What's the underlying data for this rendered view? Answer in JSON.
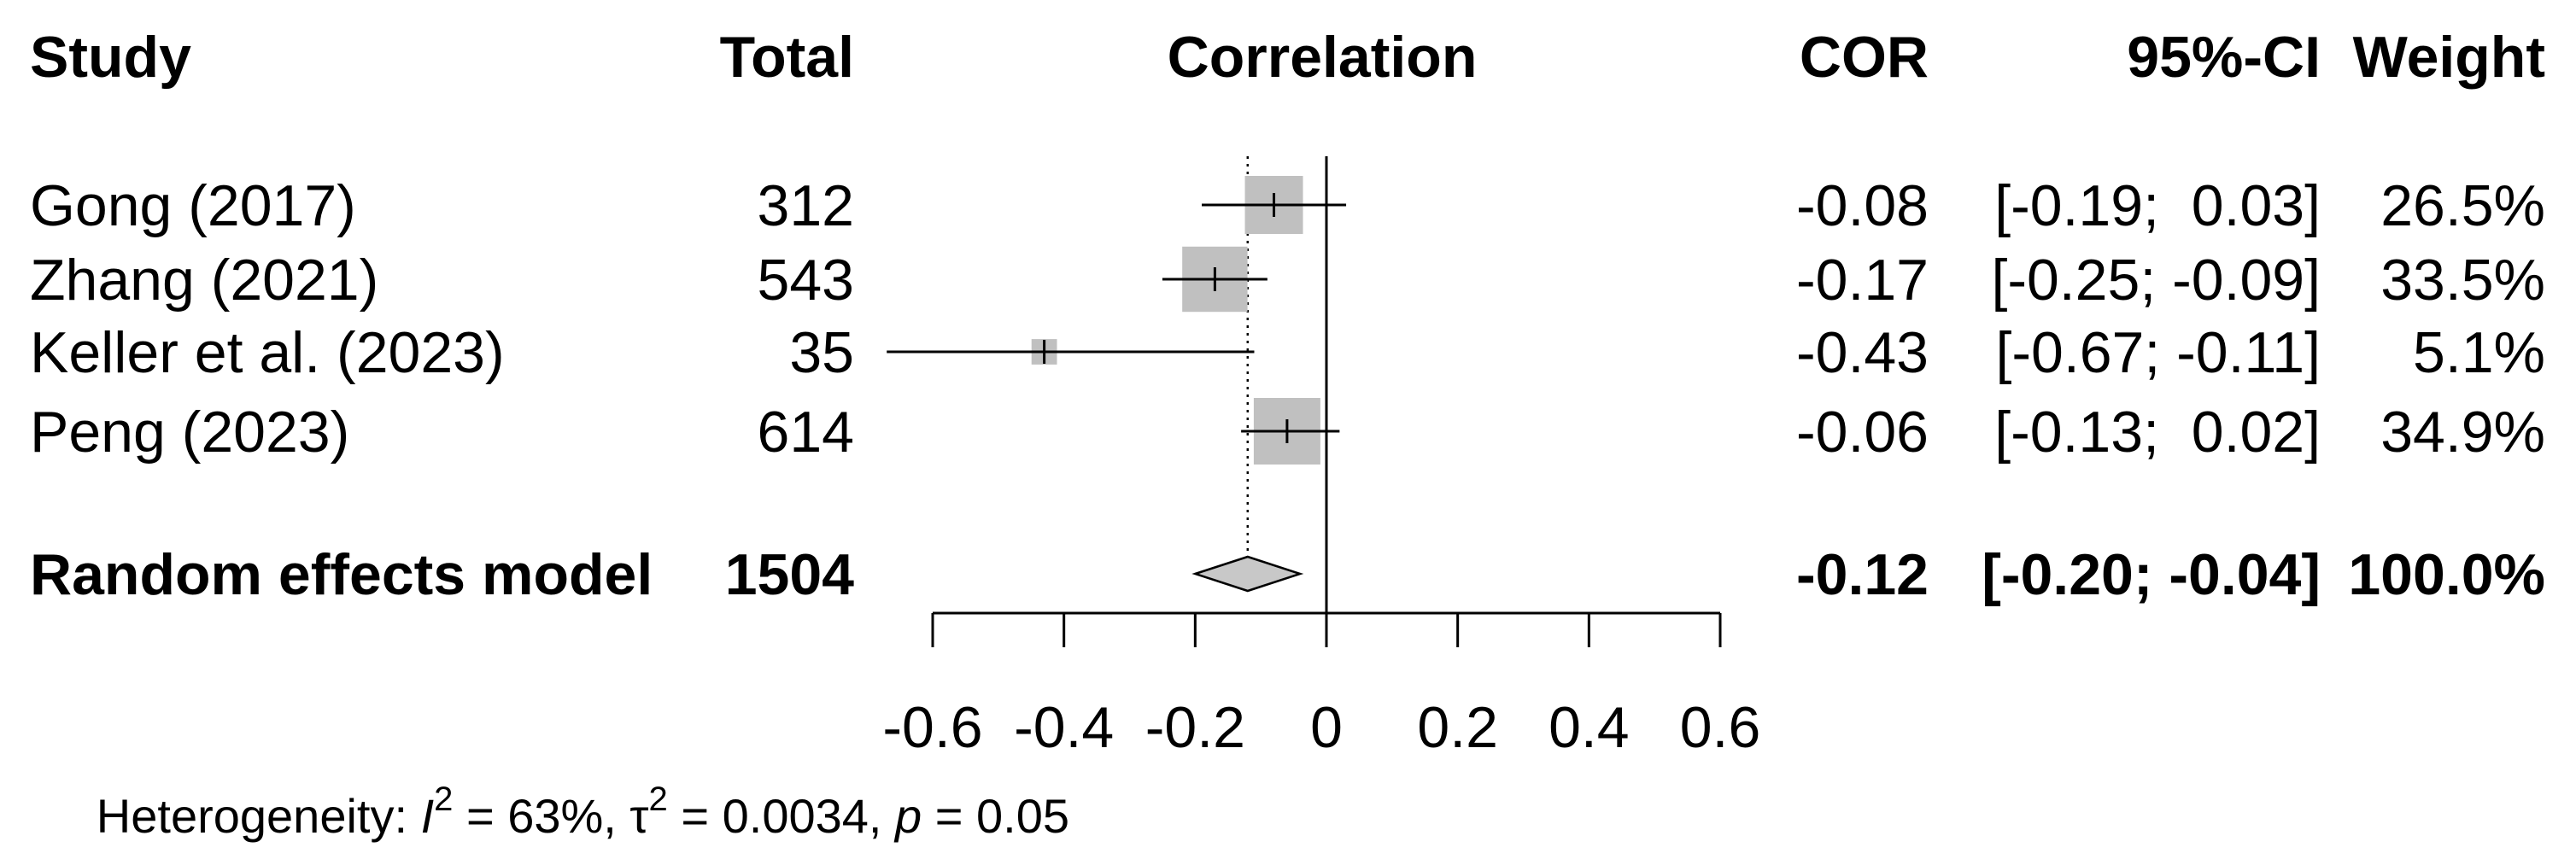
{
  "chart_data": {
    "type": "forest",
    "headers": {
      "study": "Study",
      "total": "Total",
      "plot": "Correlation",
      "effect": "COR",
      "ci": "95%-CI",
      "weight": "Weight"
    },
    "studies": [
      {
        "study": "Gong (2017)",
        "total": "312",
        "cor": -0.08,
        "lower": -0.19,
        "upper": 0.03,
        "weight": 26.5,
        "cor_text": "-0.08",
        "ci_text": "[-0.19;  0.03]",
        "weight_text": "26.5%"
      },
      {
        "study": "Zhang (2021)",
        "total": "543",
        "cor": -0.17,
        "lower": -0.25,
        "upper": -0.09,
        "weight": 33.5,
        "cor_text": "-0.17",
        "ci_text": "[-0.25; -0.09]",
        "weight_text": "33.5%"
      },
      {
        "study": "Keller et al. (2023)",
        "total": "35",
        "cor": -0.43,
        "lower": -0.67,
        "upper": -0.11,
        "weight": 5.1,
        "cor_text": "-0.43",
        "ci_text": "[-0.67; -0.11]",
        "weight_text": "5.1%"
      },
      {
        "study": "Peng (2023)",
        "total": "614",
        "cor": -0.06,
        "lower": -0.13,
        "upper": 0.02,
        "weight": 34.9,
        "cor_text": "-0.06",
        "ci_text": "[-0.13;  0.02]",
        "weight_text": "34.9%"
      }
    ],
    "pooled": {
      "study": "Random effects model",
      "total": "1504",
      "cor": -0.12,
      "lower": -0.2,
      "upper": -0.04,
      "cor_text": "-0.12",
      "ci_text": "[-0.20; -0.04]",
      "weight_text": "100.0%"
    },
    "xlim": [
      -0.6,
      0.6
    ],
    "ticks": [
      -0.6,
      -0.4,
      -0.2,
      0,
      0.2,
      0.4,
      0.6
    ],
    "tick_labels": [
      "-0.6",
      "-0.4",
      "-0.2",
      "0",
      "0.2",
      "0.4",
      "0.6"
    ],
    "reference_line": 0,
    "heterogeneity": {
      "prefix": "Heterogeneity: ",
      "i_symbol": "I",
      "i2_value": " = 63%, ",
      "tau_symbol": "τ",
      "superscript": "2",
      "tau2_value": " = 0.0034, ",
      "p_symbol": "p",
      "p_value": " = 0.05"
    },
    "colors": {
      "square": "#c0c0c0",
      "diamond": "#c8c8c8",
      "line": "#000000"
    }
  }
}
